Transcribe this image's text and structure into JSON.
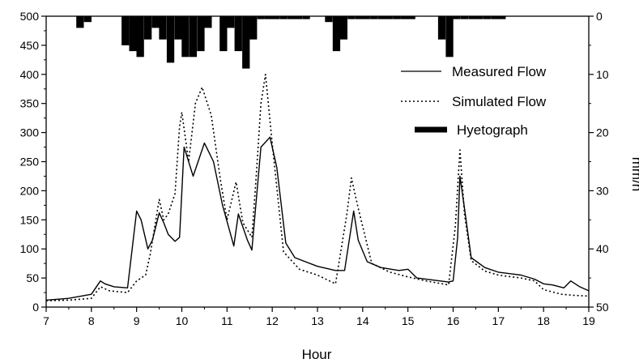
{
  "chart_data": {
    "type": "line",
    "xlabel": "Hour",
    "ylabel_left": "",
    "ylabel_right": "mm/h",
    "xlim": [
      7,
      19
    ],
    "ylim_left": [
      0,
      500
    ],
    "ylim_right": [
      50,
      0
    ],
    "right_axis_inverted": true,
    "x_ticks": [
      7,
      8,
      9,
      10,
      11,
      12,
      13,
      14,
      15,
      16,
      17,
      18,
      19
    ],
    "left_ticks": [
      0,
      50,
      100,
      150,
      200,
      250,
      300,
      350,
      400,
      450,
      500
    ],
    "right_ticks": [
      0,
      10,
      20,
      30,
      40,
      50
    ],
    "legend_position": "top-right",
    "grid": false,
    "series": [
      {
        "name": "Measured Flow",
        "style": "solid",
        "color": "#000000",
        "x": [
          7,
          7.5,
          8,
          8.2,
          8.3,
          8.5,
          8.8,
          9.0,
          9.1,
          9.25,
          9.35,
          9.5,
          9.6,
          9.7,
          9.85,
          9.95,
          10.05,
          10.25,
          10.5,
          10.7,
          10.9,
          11.15,
          11.25,
          11.45,
          11.55,
          11.75,
          11.95,
          12.1,
          12.3,
          12.5,
          13.0,
          13.4,
          13.6,
          13.8,
          13.9,
          14.1,
          14.4,
          14.8,
          15.0,
          15.2,
          15.9,
          16.0,
          16.1,
          16.15,
          16.25,
          16.4,
          16.7,
          17.0,
          17.5,
          17.8,
          18.0,
          18.2,
          18.45,
          18.6,
          18.8,
          19.0
        ],
        "y": [
          12,
          15,
          22,
          45,
          40,
          35,
          33,
          165,
          150,
          100,
          115,
          162,
          145,
          125,
          113,
          120,
          275,
          225,
          282,
          250,
          175,
          105,
          160,
          115,
          98,
          275,
          292,
          240,
          110,
          85,
          70,
          63,
          63,
          165,
          115,
          78,
          68,
          63,
          65,
          50,
          43,
          45,
          120,
          225,
          170,
          85,
          68,
          60,
          55,
          48,
          40,
          38,
          33,
          45,
          35,
          28
        ]
      },
      {
        "name": "Simulated Flow",
        "style": "dotted",
        "color": "#000000",
        "x": [
          7,
          7.5,
          8,
          8.2,
          8.4,
          8.8,
          9.0,
          9.2,
          9.3,
          9.5,
          9.6,
          9.7,
          9.85,
          9.95,
          10.0,
          10.15,
          10.3,
          10.45,
          10.65,
          10.85,
          11.0,
          11.2,
          11.35,
          11.55,
          11.65,
          11.75,
          11.85,
          12.0,
          12.25,
          12.6,
          13.0,
          13.4,
          13.65,
          13.75,
          13.9,
          14.2,
          14.6,
          15.0,
          15.4,
          15.9,
          16.05,
          16.15,
          16.25,
          16.4,
          16.7,
          17.0,
          17.5,
          17.8,
          18.0,
          18.4,
          18.7,
          19.0
        ],
        "y": [
          11,
          12,
          15,
          35,
          28,
          25,
          45,
          55,
          90,
          185,
          150,
          160,
          195,
          310,
          335,
          250,
          350,
          378,
          330,
          220,
          150,
          215,
          145,
          120,
          230,
          350,
          400,
          280,
          95,
          65,
          55,
          40,
          160,
          222,
          170,
          75,
          60,
          52,
          45,
          38,
          140,
          270,
          160,
          80,
          62,
          55,
          50,
          45,
          30,
          22,
          20,
          19
        ]
      }
    ],
    "hyetograph": {
      "name": "Hyetograph",
      "axis": "right",
      "bar_width_hours": 0.1667,
      "x": [
        7.75,
        7.92,
        8.75,
        8.92,
        9.08,
        9.25,
        9.42,
        9.58,
        9.75,
        9.92,
        10.08,
        10.25,
        10.42,
        10.58,
        10.92,
        11.08,
        11.25,
        11.42,
        11.58,
        11.75,
        11.92,
        12.08,
        12.25,
        12.42,
        12.58,
        12.75,
        13.25,
        13.42,
        13.58,
        13.75,
        13.92,
        14.08,
        14.25,
        14.42,
        14.58,
        14.75,
        14.92,
        15.08,
        15.75,
        15.92,
        16.08,
        16.25,
        16.42,
        16.58,
        16.75,
        16.92,
        17.08
      ],
      "y": [
        2,
        1,
        5,
        6,
        7,
        4,
        2,
        4,
        8,
        4,
        7,
        7,
        6,
        2,
        6,
        2,
        6,
        9,
        4,
        0.5,
        0.5,
        0.5,
        0.5,
        0.5,
        0.5,
        0.5,
        1,
        6,
        4,
        0.5,
        0.5,
        0.5,
        0.5,
        0.5,
        0.5,
        0.5,
        0.5,
        0.5,
        4,
        7,
        0.5,
        0.5,
        0.5,
        0.5,
        0.5,
        0.5,
        0.5
      ]
    },
    "legend": [
      {
        "label": "Measured Flow",
        "style": "solid"
      },
      {
        "label": "Simulated Flow",
        "style": "dotted"
      },
      {
        "label": "Hyetograph",
        "style": "thick-bar"
      }
    ]
  }
}
